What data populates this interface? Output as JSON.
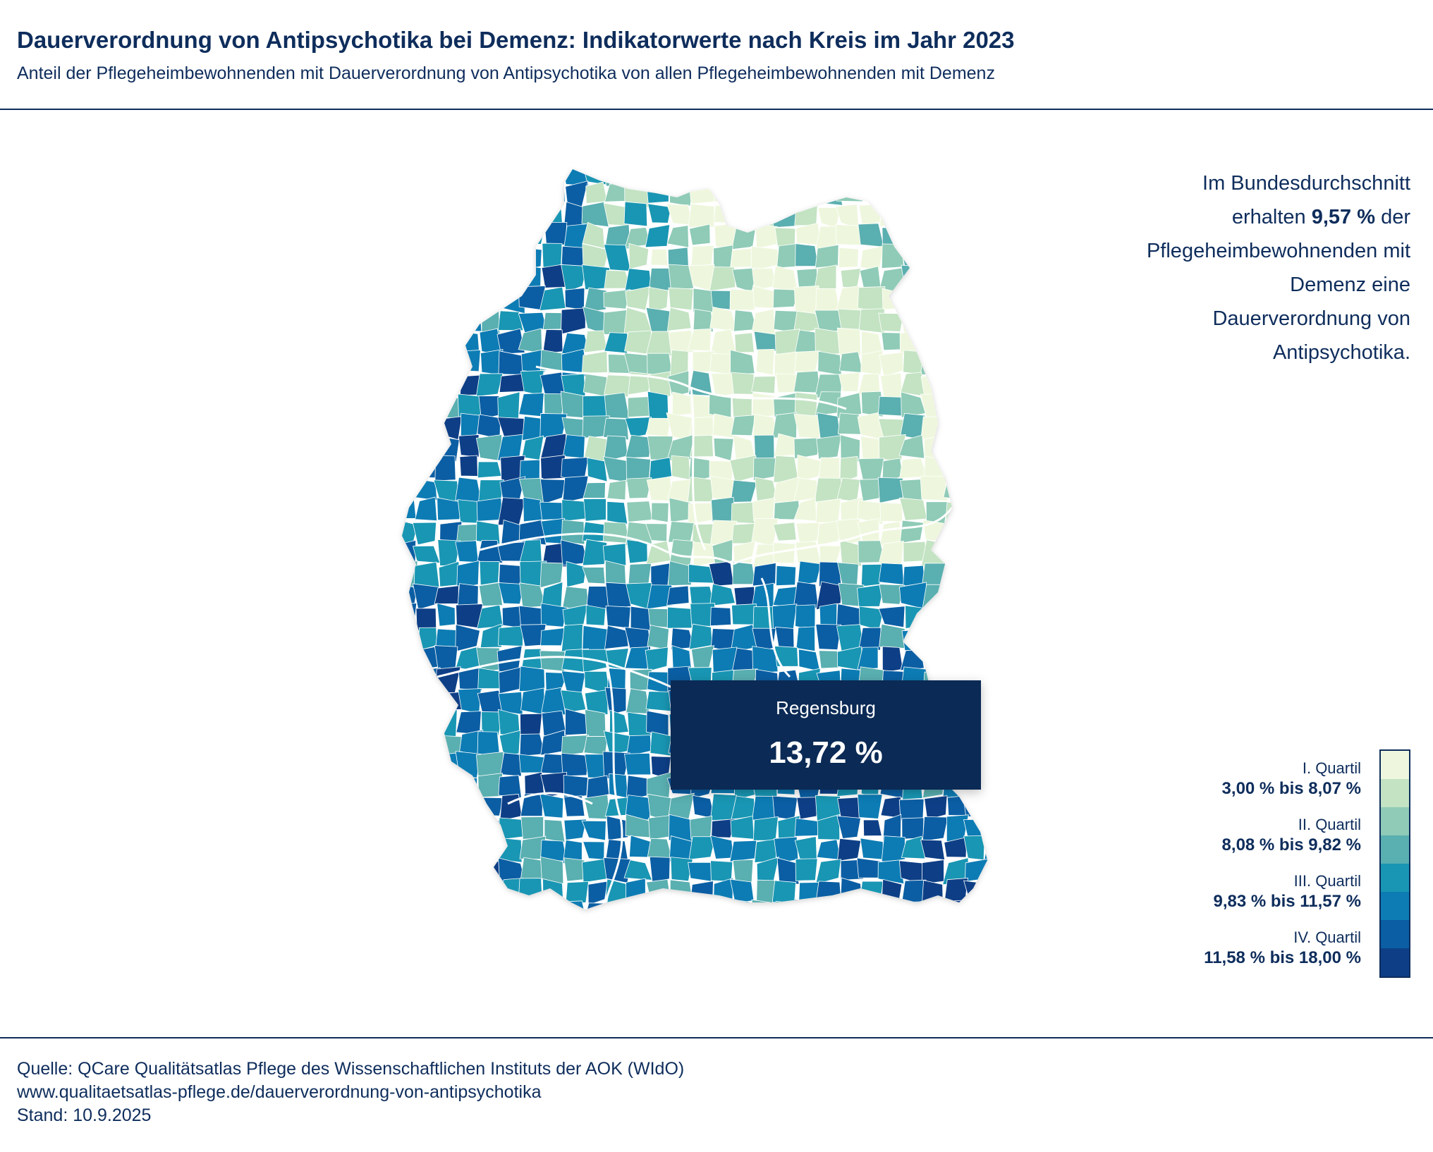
{
  "header": {
    "title": "Dauerverordnung von Antipsychotika bei Demenz: Indikatorwerte nach Kreis im Jahr 2023",
    "subtitle": "Anteil der Pflegeheimbewohnenden mit Dauerverordnung von Antipsychotika von allen Pflegeheimbewohnenden mit Demenz"
  },
  "average": {
    "line1": "Im Bundesdurchschnitt",
    "pre_value": "erhalten ",
    "value": "9,57 %",
    "post_value": " der",
    "line3": "Pflegeheimbewohnenden mit",
    "line4": "Demenz eine",
    "line5": "Dauerverordnung von",
    "line6": "Antipsychotika."
  },
  "tooltip": {
    "name": "Regensburg",
    "value": "13,72 %"
  },
  "legend": {
    "colors": [
      "#eef7dd",
      "#c3e3c3",
      "#8fcbb7",
      "#5aafb0",
      "#1996b3",
      "#0d7cb4",
      "#0b5ea3",
      "#0e3f86"
    ],
    "items": [
      {
        "quartile": "I. Quartil",
        "range": "3,00 % bis 8,07 %"
      },
      {
        "quartile": "II. Quartil",
        "range": "8,08 % bis 9,82 %"
      },
      {
        "quartile": "III. Quartil",
        "range": "9,83 % bis 11,57 %"
      },
      {
        "quartile": "IV. Quartil",
        "range": "11,58 % bis 18,00 %"
      }
    ]
  },
  "footer": {
    "source": "Quelle: QCare Qualitätsatlas Pflege des Wissenschaftlichen Instituts der AOK (WIdO)",
    "url": "www.qualitaetsatlas-pflege.de/dauerverordnung-von-antipsychotika",
    "date": "Stand: 10.9.2025"
  }
}
